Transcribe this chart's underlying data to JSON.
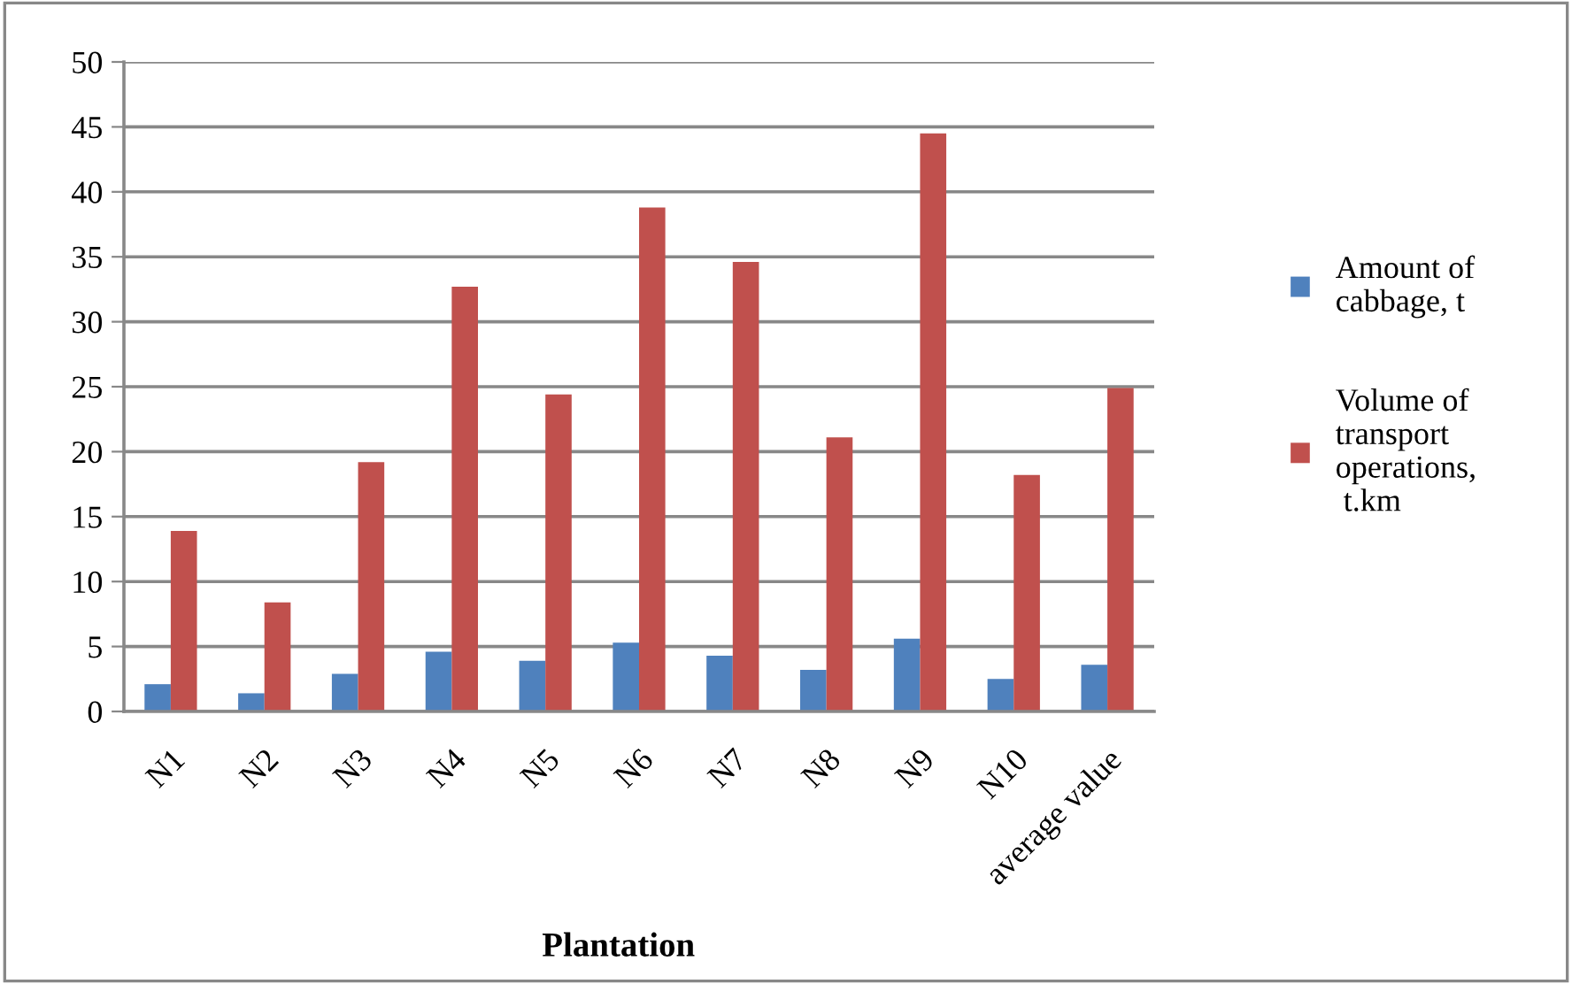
{
  "chart_data": {
    "type": "bar",
    "xlabel": "Plantation",
    "categories": [
      "N1",
      "N2",
      "N3",
      "N4",
      "N5",
      "N6",
      "N7",
      "N8",
      "N9",
      "N10",
      "average value"
    ],
    "series": [
      {
        "name": "Amount of\ncabbage, t",
        "color": "#4f81bd",
        "values": [
          2.1,
          1.4,
          2.9,
          4.6,
          3.9,
          5.3,
          4.3,
          3.2,
          5.6,
          2.5,
          3.6
        ]
      },
      {
        "name": "Volume of\ntransport\noperations,\n t.km",
        "color": "#c0504d",
        "values": [
          13.9,
          8.4,
          19.2,
          32.7,
          24.4,
          38.8,
          34.6,
          21.1,
          44.5,
          18.2,
          24.9
        ]
      }
    ],
    "ylim": [
      0,
      50
    ],
    "yticks": [
      0,
      5,
      10,
      15,
      20,
      25,
      30,
      35,
      40,
      45,
      50
    ],
    "grid": "y",
    "legend": "right"
  }
}
